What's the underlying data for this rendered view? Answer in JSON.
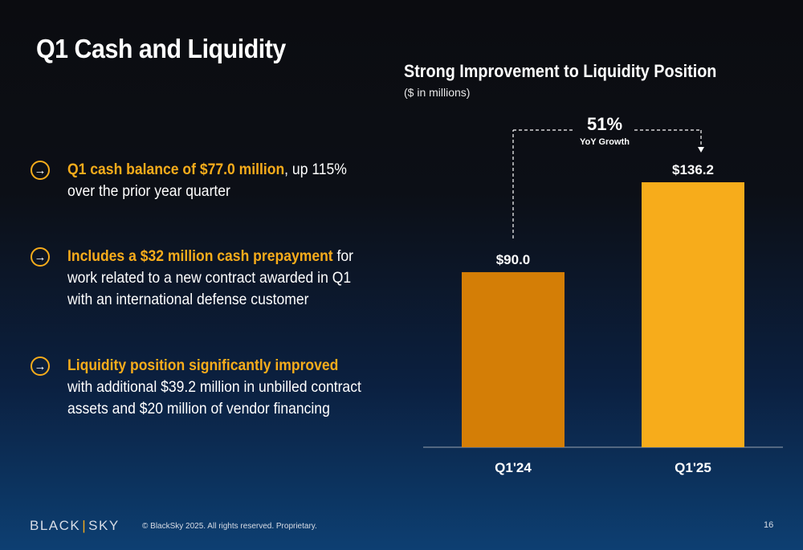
{
  "title": "Q1 Cash and Liquidity",
  "bullets": [
    {
      "highlight": "Q1 cash balance of $77.0 million",
      "lines": [
        ", up 115%",
        "over the prior year quarter"
      ]
    },
    {
      "highlight": "Includes a $32 million cash prepayment",
      "lines": [
        " for",
        "work related to a new contract awarded in Q1",
        "with an international defense customer"
      ]
    },
    {
      "highlight": "Liquidity position significantly improved",
      "lines": [
        "",
        "with additional $39.2 million in unbilled contract",
        "assets and $20 million of vendor financing"
      ]
    }
  ],
  "bullet_arrow": "→",
  "chart_data": {
    "type": "bar",
    "title": "Strong Improvement to Liquidity Position",
    "subtitle": "($ in millions)",
    "categories": [
      "Q1'24",
      "Q1'25"
    ],
    "values": [
      90.0,
      136.2
    ],
    "value_labels": [
      "$90.0",
      "$136.2"
    ],
    "colors": [
      "#d47e06",
      "#f7ac1b"
    ],
    "annotation": {
      "value": "51%",
      "label": "YoY Growth",
      "from": "Q1'24",
      "to": "Q1'25"
    },
    "ylim": [
      0,
      136.2
    ],
    "grid": false,
    "legend": "none"
  },
  "footer": {
    "logo_left": "BLACK",
    "logo_sep": "|",
    "logo_right": "SKY",
    "copyright": "© BlackSky 2025. All rights reserved. Proprietary.",
    "page_number": "16"
  }
}
